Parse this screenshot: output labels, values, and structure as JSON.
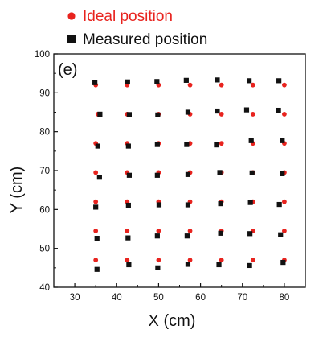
{
  "chart_data": {
    "type": "scatter",
    "panel_label": "(e)",
    "xlabel": "X (cm)",
    "ylabel": "Y (cm)",
    "xlim": [
      25,
      85
    ],
    "ylim": [
      40,
      100
    ],
    "xticks": [
      30,
      40,
      50,
      60,
      70,
      80
    ],
    "yticks": [
      40,
      50,
      60,
      70,
      80,
      90,
      100
    ],
    "grid": false,
    "legend_position": "top-left, outside plot",
    "series": [
      {
        "name": "Ideal position",
        "color": "#e8231e",
        "marker": "circle",
        "points": [
          [
            35,
            92
          ],
          [
            42.5,
            92
          ],
          [
            50,
            92
          ],
          [
            57.5,
            92
          ],
          [
            65,
            92
          ],
          [
            72.5,
            92
          ],
          [
            80,
            92
          ],
          [
            35.5,
            84.5
          ],
          [
            42.5,
            84.5
          ],
          [
            50,
            84.5
          ],
          [
            57.5,
            84.5
          ],
          [
            65,
            84.5
          ],
          [
            72.5,
            84.5
          ],
          [
            80,
            84.5
          ],
          [
            35,
            77
          ],
          [
            42.5,
            77
          ],
          [
            50,
            77
          ],
          [
            57.5,
            77
          ],
          [
            65,
            77
          ],
          [
            72.5,
            77
          ],
          [
            80,
            77
          ],
          [
            35,
            69.5
          ],
          [
            42.5,
            69.5
          ],
          [
            50,
            69.5
          ],
          [
            57.5,
            69.5
          ],
          [
            65,
            69.5
          ],
          [
            72.5,
            69.5
          ],
          [
            80,
            69.5
          ],
          [
            35,
            62
          ],
          [
            42.5,
            62
          ],
          [
            50,
            62
          ],
          [
            57.5,
            62
          ],
          [
            65,
            62
          ],
          [
            72.5,
            62
          ],
          [
            80,
            62
          ],
          [
            35,
            54.5
          ],
          [
            42.5,
            54.5
          ],
          [
            50,
            54.5
          ],
          [
            57.5,
            54.5
          ],
          [
            65,
            54.5
          ],
          [
            72.5,
            54.5
          ],
          [
            80,
            54.5
          ],
          [
            35,
            47
          ],
          [
            42.5,
            47
          ],
          [
            50,
            47
          ],
          [
            57.5,
            47
          ],
          [
            65,
            47
          ],
          [
            72.5,
            47
          ],
          [
            80,
            47
          ]
        ]
      },
      {
        "name": "Measured position",
        "color": "#111111",
        "marker": "square",
        "points": [
          [
            34.8,
            92.6
          ],
          [
            42.6,
            92.8
          ],
          [
            49.6,
            92.9
          ],
          [
            56.6,
            93.2
          ],
          [
            64,
            93.3
          ],
          [
            71.6,
            93.1
          ],
          [
            78.7,
            93.1
          ],
          [
            36,
            84.5
          ],
          [
            43,
            84.4
          ],
          [
            49.8,
            84.3
          ],
          [
            57,
            85
          ],
          [
            64,
            85.3
          ],
          [
            71,
            85.6
          ],
          [
            78.6,
            85.5
          ],
          [
            35.5,
            76.3
          ],
          [
            42.8,
            76.3
          ],
          [
            49.7,
            76.7
          ],
          [
            56.7,
            76.7
          ],
          [
            63.8,
            76.6
          ],
          [
            72.1,
            77.7
          ],
          [
            79.5,
            77.7
          ],
          [
            35.9,
            68.3
          ],
          [
            43,
            68.8
          ],
          [
            49.7,
            68.8
          ],
          [
            57,
            69
          ],
          [
            64.6,
            69.5
          ],
          [
            72.3,
            69.4
          ],
          [
            79.5,
            69.2
          ],
          [
            35,
            60.6
          ],
          [
            42.8,
            61.1
          ],
          [
            50.1,
            61.2
          ],
          [
            57,
            61.2
          ],
          [
            64.8,
            61.5
          ],
          [
            71.9,
            61.8
          ],
          [
            78.8,
            61.3
          ],
          [
            35.3,
            52.6
          ],
          [
            42.7,
            52.7
          ],
          [
            49.7,
            53.2
          ],
          [
            56.8,
            53.2
          ],
          [
            64.8,
            53.9
          ],
          [
            71.8,
            53.8
          ],
          [
            79.1,
            53.5
          ],
          [
            35.3,
            44.6
          ],
          [
            42.9,
            45.8
          ],
          [
            49.8,
            45
          ],
          [
            57,
            45.9
          ],
          [
            64.4,
            45.8
          ],
          [
            71.7,
            45.6
          ],
          [
            79.7,
            46.4
          ]
        ]
      }
    ]
  }
}
